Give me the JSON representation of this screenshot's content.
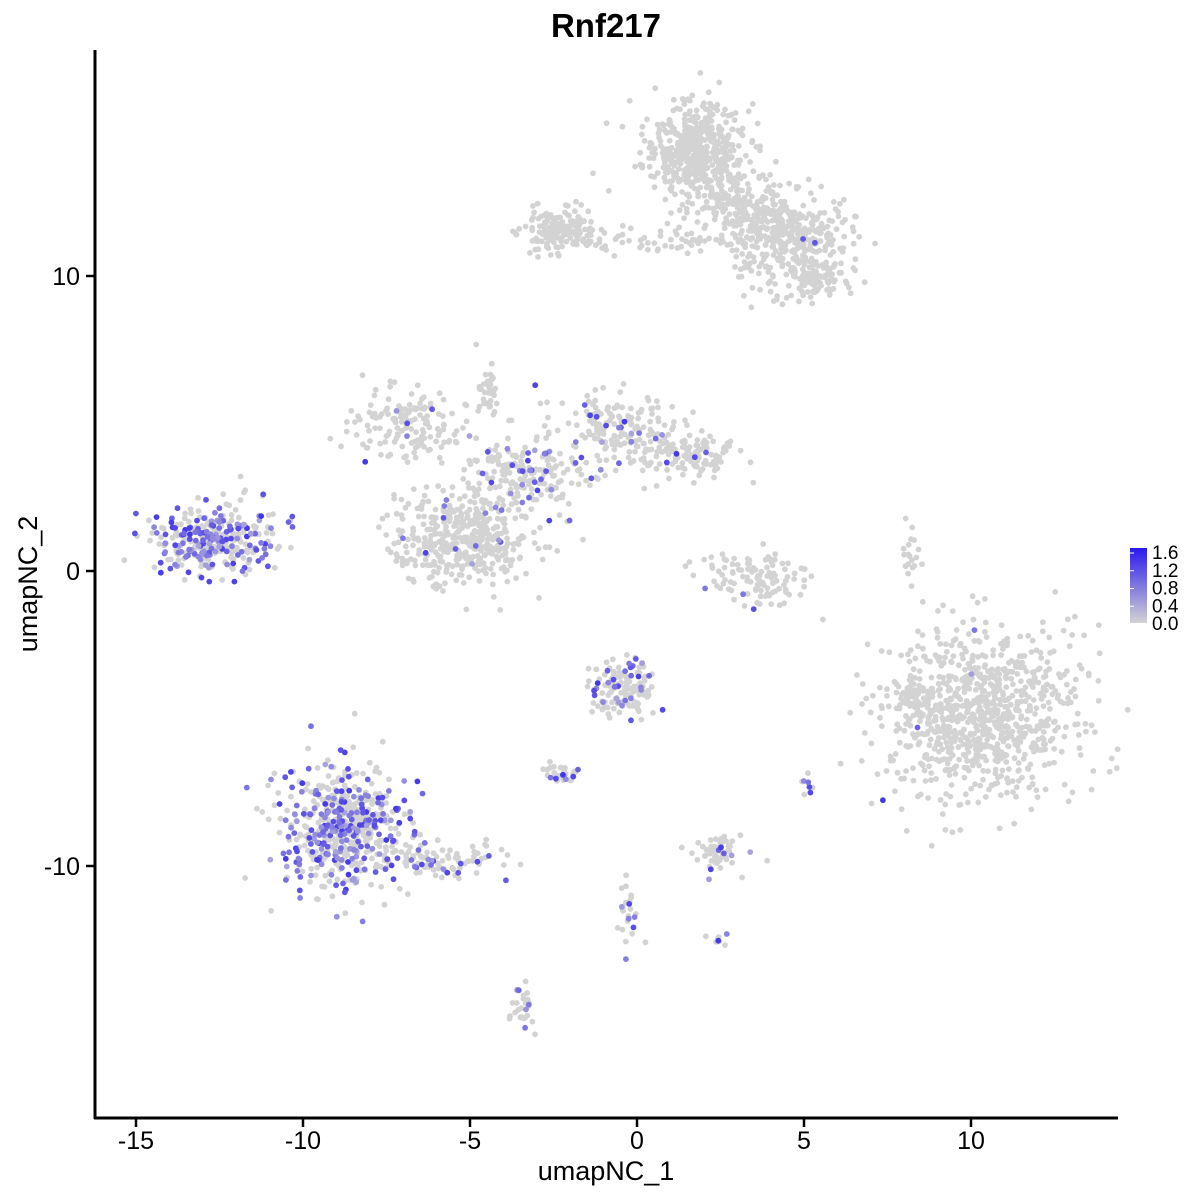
{
  "chart_data": {
    "type": "scatter",
    "title": "Rnf217",
    "xlabel": "umapNC_1",
    "ylabel": "umapNC_2",
    "xlim": [
      -16.5,
      14.5
    ],
    "ylim": [
      -18.5,
      18.0
    ],
    "x_ticks": [
      -15,
      -10,
      -5,
      0,
      5,
      10
    ],
    "x_tick_labels": [
      "-15",
      "-10",
      "-5",
      "0",
      "5",
      "10"
    ],
    "y_ticks": [
      -10,
      0,
      10
    ],
    "y_tick_labels": [
      "-10",
      "0",
      "10"
    ],
    "grid": false,
    "legend": {
      "placement": "right",
      "type": "colorbar",
      "min": 0.0,
      "max": 1.6,
      "breaks": [
        "1.6",
        "1.2",
        "0.8",
        "0.4",
        "0.0"
      ],
      "low_color": "#d3d3d3",
      "high_color": "#2a1aee"
    },
    "clusters": [
      {
        "name": "top-right-arm",
        "cx": 1.7,
        "cy": 14.2,
        "sx": 0.75,
        "sy": 0.85,
        "n": 520,
        "expr_frac": 0.0
      },
      {
        "name": "top-right-lobe",
        "cx": 4.5,
        "cy": 11.3,
        "sx": 0.95,
        "sy": 0.7,
        "n": 340,
        "expr_frac": 0.01
      },
      {
        "name": "top-right-tail",
        "cx": 5.3,
        "cy": 9.9,
        "sx": 0.55,
        "sy": 0.35,
        "n": 90,
        "expr_frac": 0.0
      },
      {
        "name": "top-bridge-left",
        "cx": -2.3,
        "cy": 11.5,
        "sx": 0.55,
        "sy": 0.35,
        "n": 160,
        "expr_frac": 0.0
      },
      {
        "name": "top-bridge",
        "cx": 0.5,
        "cy": 11.2,
        "sx": 1.3,
        "sy": 0.25,
        "n": 60,
        "expr_frac": 0.0
      },
      {
        "name": "top-mid-branch",
        "cx": 3.2,
        "cy": 12.3,
        "sx": 0.8,
        "sy": 0.6,
        "n": 150,
        "expr_frac": 0.0
      },
      {
        "name": "left-expr-blob",
        "cx": -12.7,
        "cy": 1.1,
        "sx": 0.95,
        "sy": 0.55,
        "n": 330,
        "expr_frac": 0.45
      },
      {
        "name": "center-lower-left",
        "cx": -5.2,
        "cy": 1.0,
        "sx": 1.0,
        "sy": 0.75,
        "n": 420,
        "expr_frac": 0.02
      },
      {
        "name": "center-hub",
        "cx": -3.4,
        "cy": 3.3,
        "sx": 0.9,
        "sy": 0.7,
        "n": 200,
        "expr_frac": 0.15
      },
      {
        "name": "center-upper-left-arm",
        "cx": -6.8,
        "cy": 5.0,
        "sx": 0.9,
        "sy": 0.55,
        "n": 150,
        "expr_frac": 0.01
      },
      {
        "name": "center-right-arm",
        "cx": -0.6,
        "cy": 4.8,
        "sx": 0.9,
        "sy": 0.6,
        "n": 160,
        "expr_frac": 0.07
      },
      {
        "name": "center-far-right-arm",
        "cx": 1.4,
        "cy": 3.9,
        "sx": 0.9,
        "sy": 0.4,
        "n": 130,
        "expr_frac": 0.06
      },
      {
        "name": "center-top-stalk",
        "cx": -4.5,
        "cy": 6.3,
        "sx": 0.15,
        "sy": 0.6,
        "n": 35,
        "expr_frac": 0.0
      },
      {
        "name": "center-arc",
        "cx": 3.5,
        "cy": -0.2,
        "sx": 0.8,
        "sy": 0.45,
        "n": 110,
        "expr_frac": 0.02
      },
      {
        "name": "right-big-blob",
        "cx": 10.3,
        "cy": -4.8,
        "sx": 1.4,
        "sy": 1.5,
        "n": 900,
        "expr_frac": 0.005
      },
      {
        "name": "bottom-left-expr",
        "cx": -8.8,
        "cy": -8.6,
        "sx": 0.95,
        "sy": 1.05,
        "n": 560,
        "expr_frac": 0.38
      },
      {
        "name": "bottom-left-tail",
        "cx": -5.8,
        "cy": -9.8,
        "sx": 0.95,
        "sy": 0.3,
        "n": 90,
        "expr_frac": 0.22
      },
      {
        "name": "mid-lower-small",
        "cx": -0.4,
        "cy": -4.0,
        "sx": 0.45,
        "sy": 0.45,
        "n": 140,
        "expr_frac": 0.2
      },
      {
        "name": "mid-lower-drop",
        "cx": -2.4,
        "cy": -6.9,
        "sx": 0.3,
        "sy": 0.2,
        "n": 30,
        "expr_frac": 0.3
      },
      {
        "name": "lower-right-small",
        "cx": 2.4,
        "cy": -9.5,
        "sx": 0.35,
        "sy": 0.35,
        "n": 60,
        "expr_frac": 0.12
      },
      {
        "name": "bottom-stalk",
        "cx": -3.4,
        "cy": -14.8,
        "sx": 0.15,
        "sy": 0.4,
        "n": 30,
        "expr_frac": 0.2
      },
      {
        "name": "bottom-branch",
        "cx": -0.3,
        "cy": -11.5,
        "sx": 0.2,
        "sy": 0.6,
        "n": 25,
        "expr_frac": 0.15
      },
      {
        "name": "right-small-patch",
        "cx": 8.2,
        "cy": -4.3,
        "sx": 0.2,
        "sy": 0.5,
        "n": 25,
        "expr_frac": 0.0
      },
      {
        "name": "right-sliver",
        "cx": 8.2,
        "cy": 0.5,
        "sx": 0.15,
        "sy": 0.5,
        "n": 18,
        "expr_frac": 0.0
      },
      {
        "name": "spot-5-7",
        "cx": 5.1,
        "cy": -7.2,
        "sx": 0.1,
        "sy": 0.15,
        "n": 8,
        "expr_frac": 0.4
      },
      {
        "name": "spot-2-12",
        "cx": 2.4,
        "cy": -12.5,
        "sx": 0.15,
        "sy": 0.08,
        "n": 8,
        "expr_frac": 0.3
      }
    ]
  }
}
